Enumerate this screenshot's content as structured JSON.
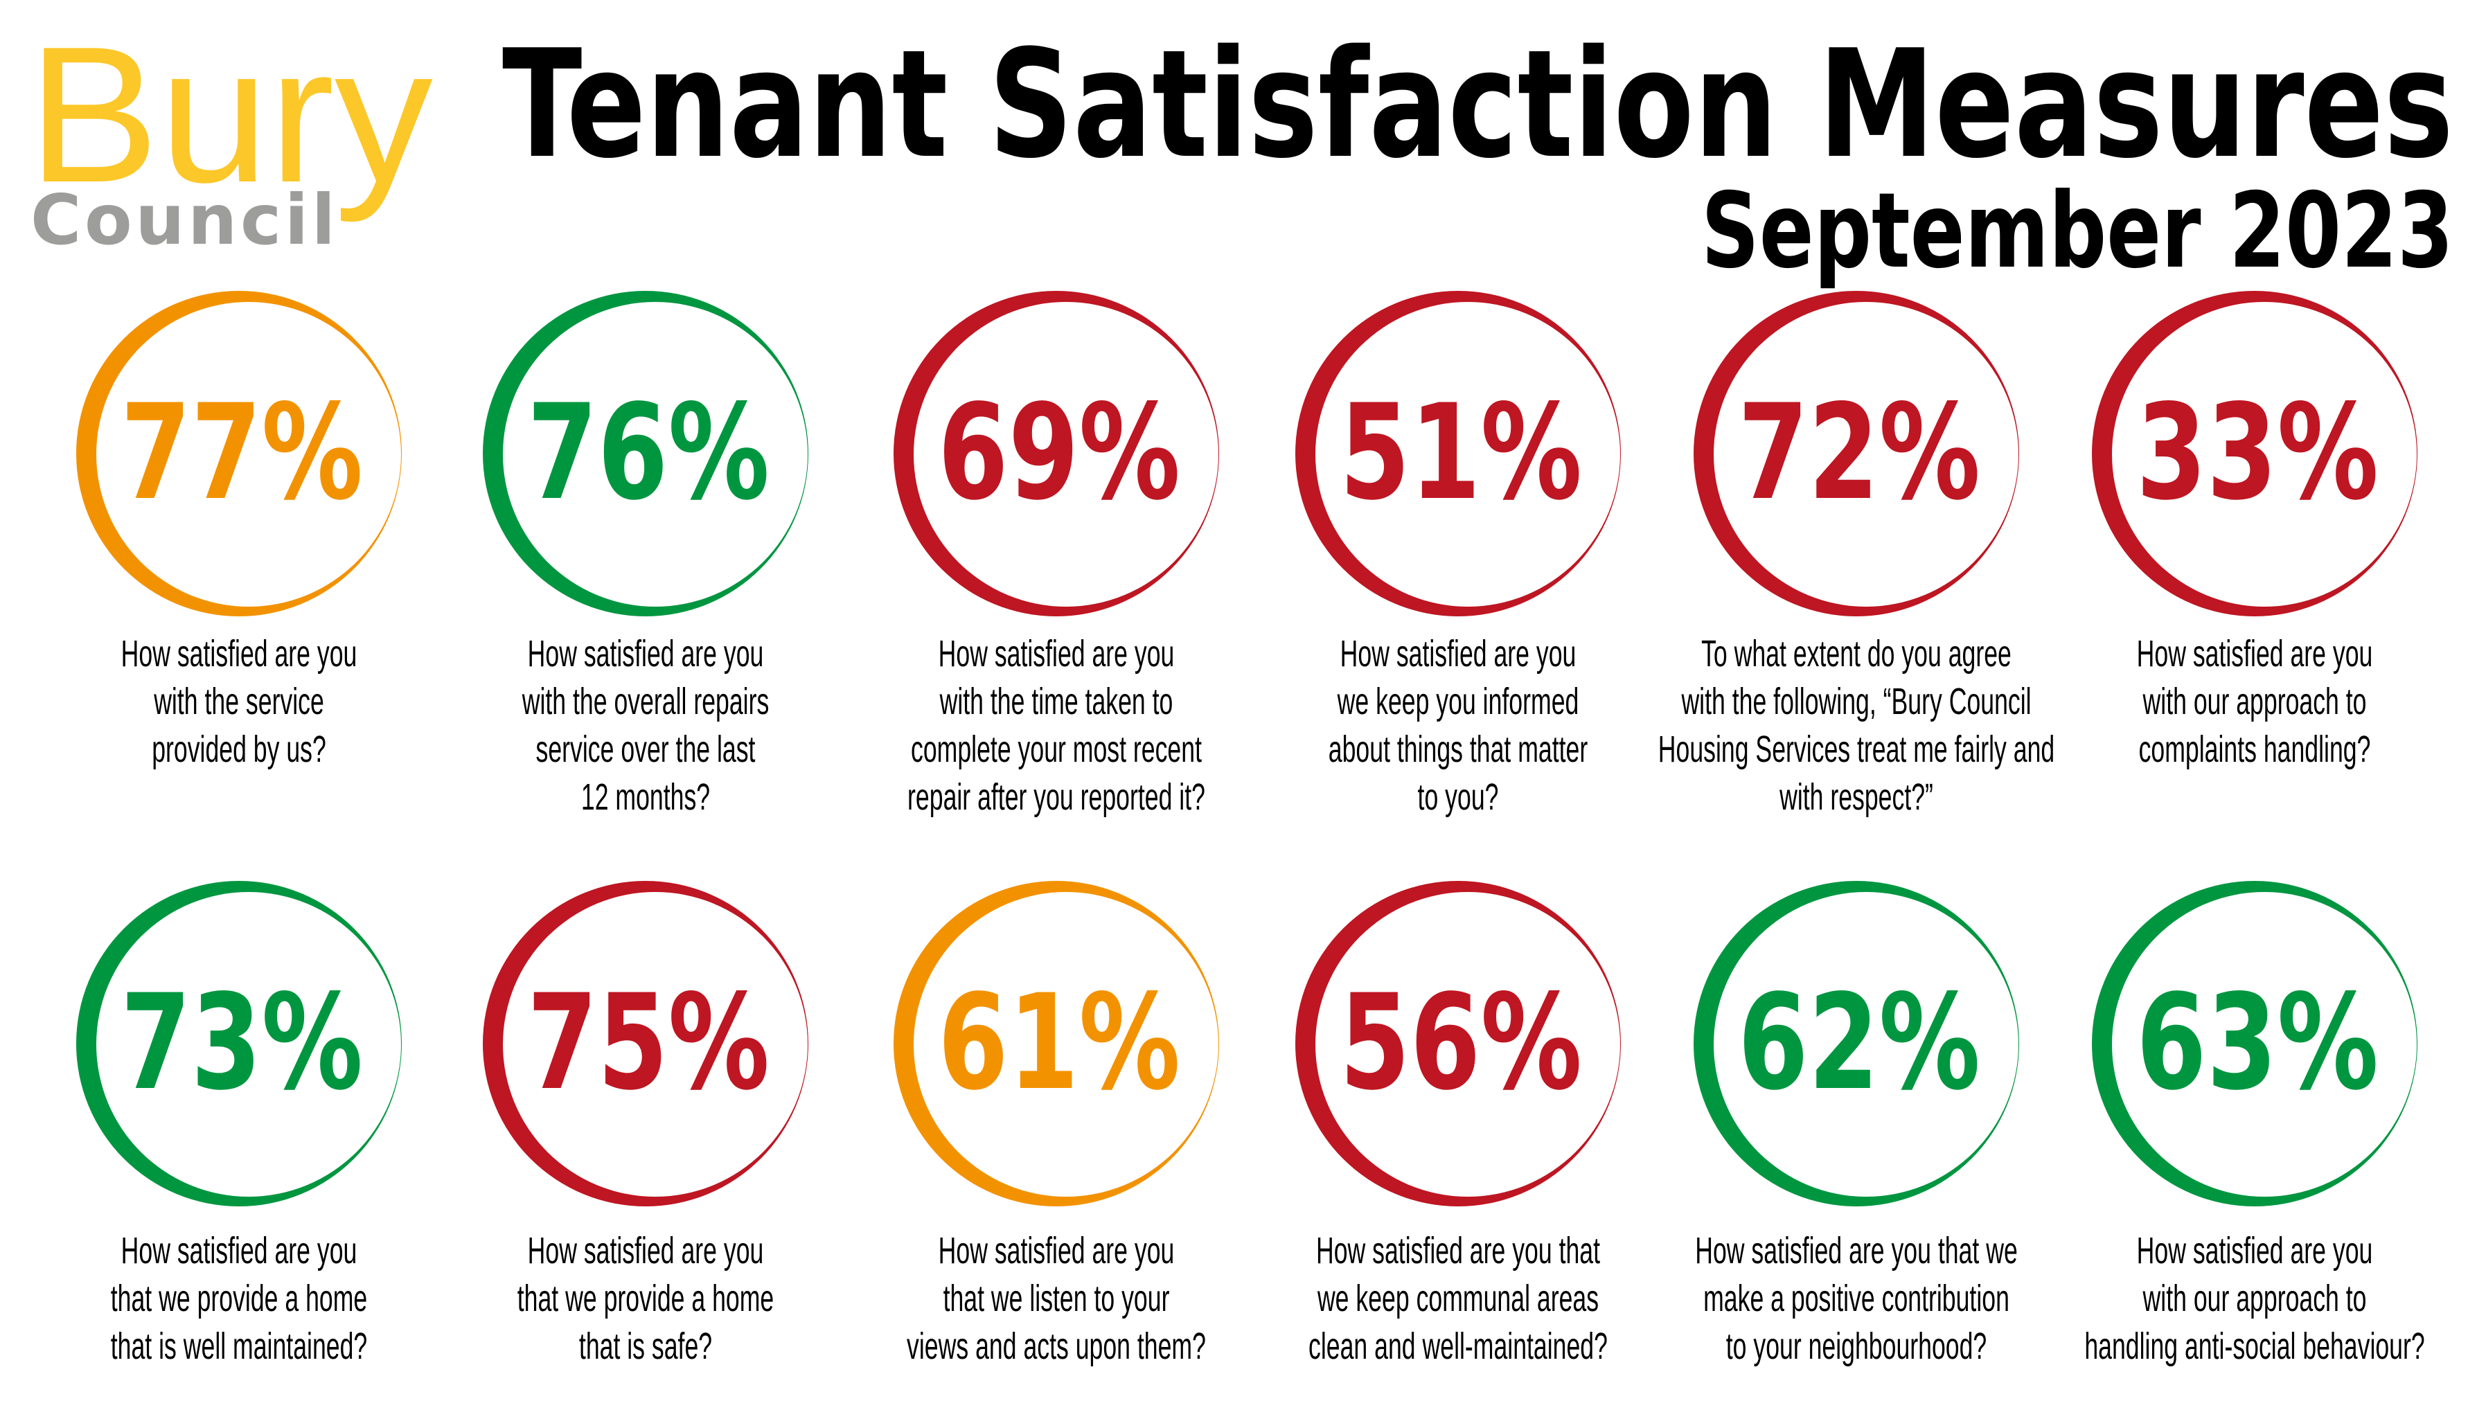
{
  "logo": {
    "line1": "Bury",
    "line2": "Council"
  },
  "header": {
    "title": "Tenant Satisfaction Measures",
    "subtitle": "September 2023"
  },
  "colors": {
    "orange": "#F39200",
    "green": "#009640",
    "red": "#BE1622",
    "logo_yellow": "#FCC729",
    "logo_gray": "#9D9D9C"
  },
  "measures": [
    {
      "value": "77%",
      "color": "orange",
      "lines": [
        "How satisfied are you",
        "with the service",
        "provided by us?"
      ]
    },
    {
      "value": "76%",
      "color": "green",
      "lines": [
        "How satisfied are you",
        "with the overall repairs",
        "service over the last",
        "12 months?"
      ]
    },
    {
      "value": "69%",
      "color": "red",
      "lines": [
        "How satisfied are you",
        "with the time taken to",
        "complete your most recent",
        "repair after you reported it?"
      ]
    },
    {
      "value": "51%",
      "color": "red",
      "lines": [
        "How satisfied are you",
        "we keep you informed",
        "about things that matter",
        "to you?"
      ]
    },
    {
      "value": "72%",
      "color": "red",
      "lines": [
        "To what extent do you agree",
        "with the following, “Bury Council",
        "Housing Services treat me fairly and",
        "with respect?”"
      ]
    },
    {
      "value": "33%",
      "color": "red",
      "lines": [
        "How satisfied are you",
        "with our approach to",
        "complaints handling?"
      ]
    },
    {
      "value": "73%",
      "color": "green",
      "lines": [
        "How satisfied are you",
        "that we provide a home",
        "that is well maintained?"
      ]
    },
    {
      "value": "75%",
      "color": "red",
      "lines": [
        "How satisfied are you",
        "that we provide a home",
        "that is safe?"
      ]
    },
    {
      "value": "61%",
      "color": "orange",
      "lines": [
        "How satisfied are you",
        "that we listen to your",
        "views and acts upon them?"
      ]
    },
    {
      "value": "56%",
      "color": "red",
      "lines": [
        "How satisfied are you that",
        "we keep communal areas",
        "clean and well-maintained?"
      ]
    },
    {
      "value": "62%",
      "color": "green",
      "lines": [
        "How satisfied are you that we",
        "make a positive contribution",
        "to your neighbourhood?"
      ]
    },
    {
      "value": "63%",
      "color": "green",
      "lines": [
        "How satisfied are you",
        "with our approach to",
        "handling anti-social behaviour?"
      ]
    }
  ]
}
